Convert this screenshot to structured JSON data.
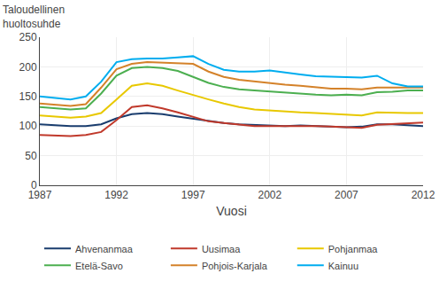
{
  "chart_data": {
    "type": "line",
    "ylabel": "Taloudellinen\nhuoltosuhde",
    "xlabel": "Vuosi",
    "x": [
      1987,
      1988,
      1989,
      1990,
      1991,
      1992,
      1993,
      1994,
      1995,
      1996,
      1997,
      1998,
      1999,
      2000,
      2001,
      2002,
      2003,
      2004,
      2005,
      2006,
      2007,
      2008,
      2009,
      2010,
      2011,
      2012
    ],
    "series": [
      {
        "name": "Ahvenanmaa",
        "color": "#1a3d6e",
        "values": [
          103,
          101,
          100,
          100,
          103,
          113,
          120,
          122,
          120,
          116,
          112,
          108,
          105,
          103,
          102,
          100,
          100,
          101,
          100,
          99,
          98,
          99,
          103,
          103,
          102,
          100
        ]
      },
      {
        "name": "Uusimaa",
        "color": "#c0392b",
        "values": [
          85,
          84,
          83,
          85,
          90,
          110,
          132,
          135,
          130,
          123,
          115,
          108,
          105,
          102,
          100,
          100,
          100,
          101,
          100,
          99,
          98,
          97,
          102,
          103,
          105,
          106
        ]
      },
      {
        "name": "Pohjanmaa",
        "color": "#e8c800",
        "values": [
          118,
          116,
          114,
          116,
          122,
          145,
          168,
          172,
          168,
          160,
          152,
          145,
          138,
          132,
          128,
          126,
          124,
          123,
          122,
          121,
          120,
          118,
          123,
          122,
          122,
          122
        ]
      },
      {
        "name": "Etelä-Savo",
        "color": "#4caf50",
        "values": [
          132,
          130,
          128,
          130,
          155,
          185,
          198,
          200,
          198,
          193,
          183,
          173,
          166,
          162,
          160,
          158,
          156,
          155,
          153,
          152,
          153,
          152,
          157,
          158,
          160,
          160
        ]
      },
      {
        "name": "Pohjois-Karjala",
        "color": "#d4822a",
        "values": [
          138,
          136,
          134,
          137,
          165,
          196,
          205,
          208,
          207,
          207,
          205,
          192,
          183,
          178,
          175,
          173,
          170,
          168,
          165,
          163,
          163,
          162,
          165,
          165,
          165,
          165
        ]
      },
      {
        "name": "Kainuu",
        "color": "#00adef",
        "values": [
          150,
          148,
          145,
          150,
          175,
          208,
          213,
          214,
          214,
          216,
          218,
          205,
          195,
          192,
          192,
          194,
          190,
          187,
          184,
          183,
          183,
          182,
          185,
          172,
          167,
          167
        ]
      }
    ],
    "xlim": [
      1987,
      2012
    ],
    "ylim": [
      0,
      250
    ],
    "xticks": [
      1987,
      1992,
      1997,
      2002,
      2007,
      2012
    ],
    "yticks": [
      0,
      50,
      100,
      150,
      200,
      250
    ],
    "grid": true,
    "legend": "bottom"
  }
}
